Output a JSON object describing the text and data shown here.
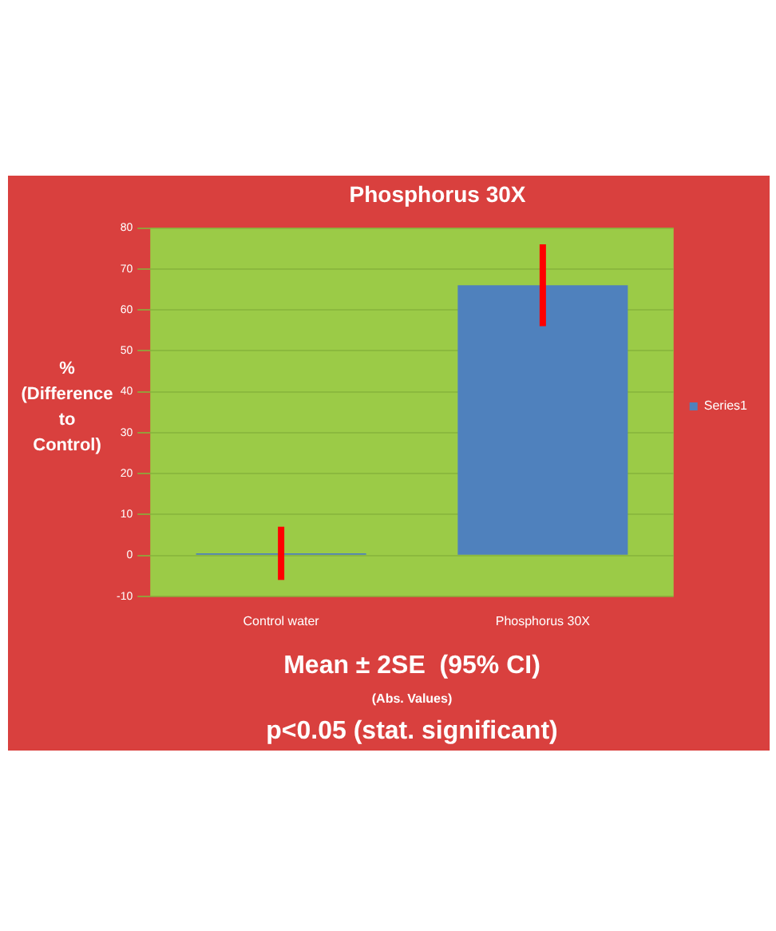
{
  "chart_data": {
    "type": "bar",
    "title": "Phosphorus 30X",
    "ylabel": "% (Difference to Control)",
    "categories": [
      "Control water",
      "Phosphorus 30X"
    ],
    "series": [
      {
        "name": "Series1",
        "color": "#4f81bd",
        "values": [
          0.5,
          66
        ],
        "errors": [
          6.5,
          10
        ]
      }
    ],
    "ylim": [
      -10,
      80
    ],
    "yticks": [
      -10,
      0,
      10,
      20,
      30,
      40,
      50,
      60,
      70,
      80
    ],
    "grid": "y",
    "legend": "right",
    "annotations": [
      "Mean ± 2SE  (95% CI)",
      "(Abs. Values)",
      "p<0.05 (stat. significant)"
    ]
  }
}
